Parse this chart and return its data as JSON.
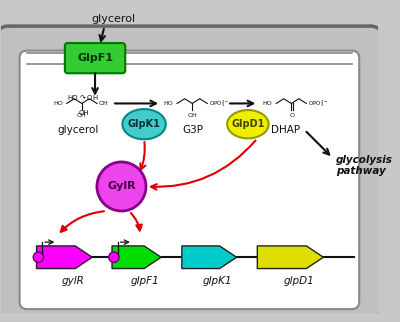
{
  "fig_w": 4.0,
  "fig_h": 3.22,
  "dpi": 100,
  "bg_outer": "#c8c8c8",
  "bg_white": "#ffffff",
  "membrane_fill": "#c0c0c0",
  "membrane_edge": "#888888",
  "glpf1_fill": "#33cc33",
  "glpf1_edge": "#007700",
  "glpf1_text": "GlpF1",
  "glpf1_textcolor": "#003300",
  "glpk1_fill": "#44cccc",
  "glpk1_edge": "#008888",
  "glpk1_text": "GlpK1",
  "glpk1_textcolor": "#003333",
  "glpd1_fill": "#eeee00",
  "glpd1_edge": "#999900",
  "glpd1_text": "GlpD1",
  "glpd1_textcolor": "#444400",
  "gylr_fill": "#ee44ee",
  "gylr_edge": "#880088",
  "gylr_text": "GylR",
  "gylr_textcolor": "#440044",
  "gene_colors": [
    "#ff00ff",
    "#00dd00",
    "#00cccc",
    "#dddd00"
  ],
  "gene_labels": [
    "gylR",
    "glpF1",
    "glpK1",
    "glpD1"
  ],
  "promoter_color": "#ff00ff",
  "red": "#dd0000",
  "black": "#111111",
  "top_label": "glycerol",
  "metabolite_labels": [
    "glycerol",
    "G3P",
    "DHAP"
  ],
  "glycolysis_line1": "glycolysis",
  "glycolysis_line2": "pathway"
}
